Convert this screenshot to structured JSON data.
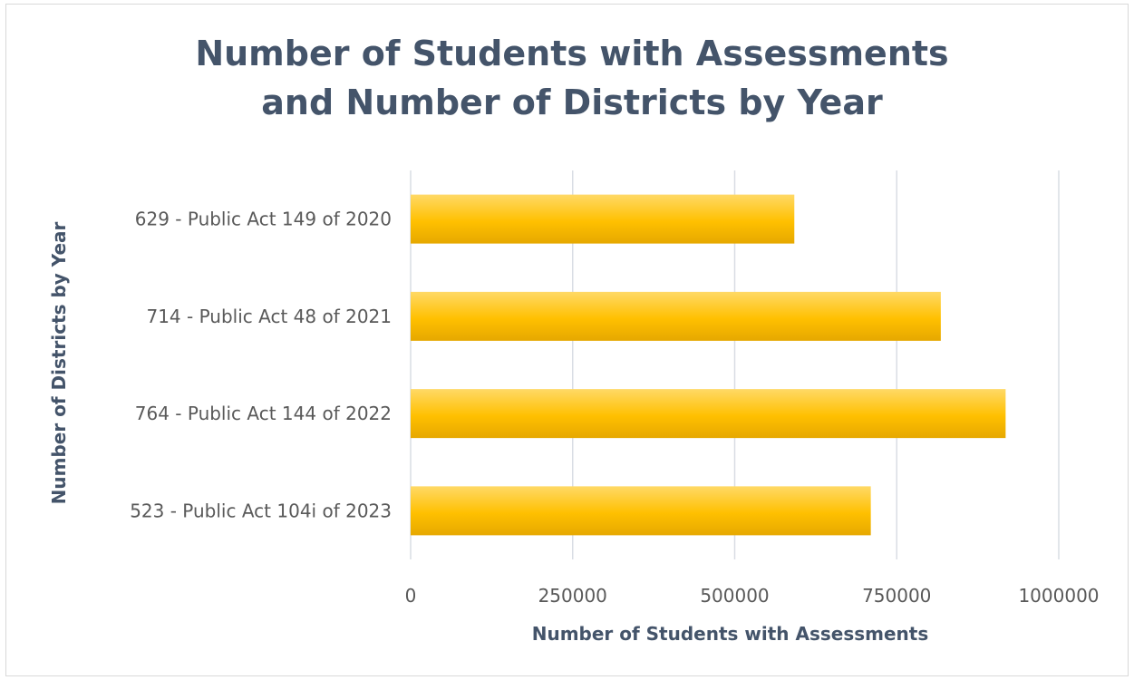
{
  "chart_data": {
    "type": "bar",
    "orientation": "horizontal",
    "title": "Number of Students with Assessments\nand Number of Districts by Year",
    "xlabel": "Number of Students with Assessments",
    "ylabel": "Number of Districts by Year",
    "categories": [
      "629 - Public Act 149 of 2020",
      "714 - Public Act 48 of 2021",
      "764 - Public Act 144 of 2022",
      "523 - Public Act 104i of 2023"
    ],
    "values": [
      592000,
      818000,
      918000,
      710000
    ],
    "xlim": [
      0,
      1000000
    ],
    "xticks": [
      0,
      250000,
      500000,
      750000,
      1000000
    ],
    "xtick_labels": [
      "0",
      "250000",
      "500000",
      "750000",
      "1000000"
    ],
    "grid": true,
    "legend": "none",
    "colors": {
      "bar_top": "#ffd966",
      "bar_mid": "#ffc000",
      "bar_bottom": "#e6a800",
      "grid": "#d9dde4",
      "title": "#44546a",
      "tick_text": "#595959"
    }
  }
}
